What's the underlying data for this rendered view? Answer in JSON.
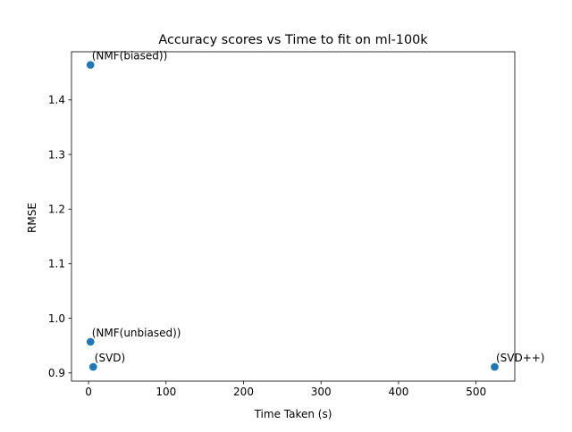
{
  "chart_data": {
    "type": "scatter",
    "title": "Accuracy scores vs Time to fit on ml-100k",
    "xlabel": "Time Taken (s)",
    "ylabel": "RMSE",
    "xlim": [
      -22,
      550
    ],
    "ylim": [
      0.885,
      1.488
    ],
    "xticks": [
      0,
      100,
      200,
      300,
      400,
      500
    ],
    "yticks": [
      0.9,
      1.0,
      1.1,
      1.2,
      1.3,
      1.4
    ],
    "yticks_labels": [
      "0.9",
      "1.0",
      "1.1",
      "1.2",
      "1.3",
      "1.4"
    ],
    "grid": false,
    "marker_color": "#1f77b4",
    "points": [
      {
        "label": "(NMF(biased))",
        "x": 2.5,
        "y": 1.464
      },
      {
        "label": "(NMF(unbiased))",
        "x": 2.5,
        "y": 0.957
      },
      {
        "label": "(SVD)",
        "x": 6.0,
        "y": 0.911
      },
      {
        "label": "(SVD++)",
        "x": 524.0,
        "y": 0.911
      }
    ]
  }
}
